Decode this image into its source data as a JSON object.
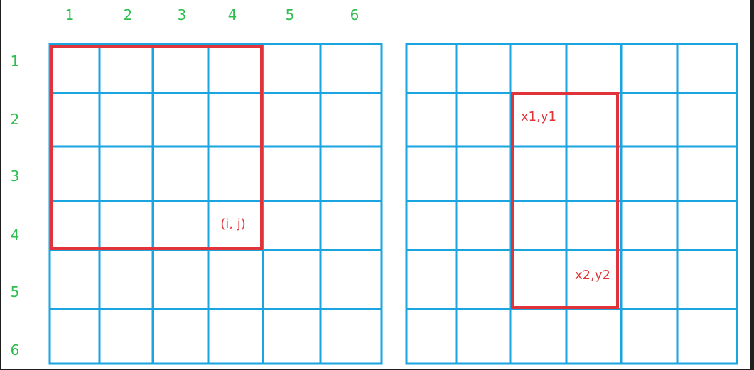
{
  "diagram": {
    "column_labels": [
      "1",
      "2",
      "3",
      "4",
      "5",
      "6"
    ],
    "row_labels": [
      "1",
      "2",
      "3",
      "4",
      "5",
      "6"
    ],
    "left_grid": {
      "rows": 6,
      "cols": 6,
      "highlight": {
        "row_start": 1,
        "row_end": 4,
        "col_start": 1,
        "col_end": 4
      },
      "corner_label": "(i, j)"
    },
    "right_grid": {
      "rows": 6,
      "cols": 6,
      "highlight": {
        "row_start": 2,
        "row_end": 5,
        "col_start": 3,
        "col_end": 4
      },
      "top_left_label": "x1,y1",
      "bottom_right_label": "x2,y2"
    },
    "colors": {
      "background": "#ffffff",
      "frame": "#1f1f1f",
      "grid_line": "#1aa4e0",
      "highlight": "#e0343a",
      "axis_label": "#2ebd4f"
    }
  }
}
